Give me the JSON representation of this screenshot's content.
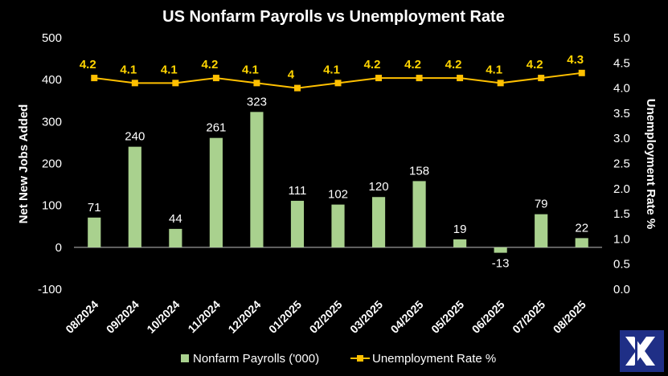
{
  "chart_data": {
    "type": "bar+line",
    "title": "US Nonfarm Payrolls vs Unemployment Rate",
    "categories": [
      "08/2024",
      "09/2024",
      "10/2024",
      "11/2024",
      "12/2024",
      "01/2025",
      "02/2025",
      "03/2025",
      "04/2025",
      "05/2025",
      "06/2025",
      "07/2025",
      "08/2025"
    ],
    "series": [
      {
        "name": "Nonfarm Payrolls ('000)",
        "type": "bar",
        "axis": "left",
        "color": "#a9d18e",
        "values": [
          71,
          240,
          44,
          261,
          323,
          111,
          102,
          120,
          158,
          19,
          -13,
          79,
          22
        ],
        "labels": [
          "71",
          "240",
          "44",
          "261",
          "323",
          "111",
          "102",
          "120",
          "158",
          "19",
          "-13",
          "79",
          "22"
        ]
      },
      {
        "name": "Unemployment Rate %",
        "type": "line",
        "axis": "right",
        "color": "#ffc000",
        "label_color": "#ffd400",
        "values": [
          4.2,
          4.1,
          4.1,
          4.2,
          4.1,
          4.0,
          4.1,
          4.2,
          4.2,
          4.2,
          4.1,
          4.2,
          4.3
        ],
        "labels": [
          "4.2",
          "4.1",
          "4.1",
          "4.2",
          "4.1",
          "4",
          "4.1",
          "4.2",
          "4.2",
          "4.2",
          "4.1",
          "4.2",
          "4.3"
        ]
      }
    ],
    "y_left": {
      "label": "Net New Jobs Added",
      "lim": [
        -100,
        500
      ],
      "ticks": [
        "500",
        "400",
        "300",
        "200",
        "100",
        "0",
        "-100"
      ]
    },
    "y_right": {
      "label": "Unemployment Rate %",
      "lim": [
        0,
        5
      ],
      "ticks": [
        "5.0",
        "4.5",
        "4.0",
        "3.5",
        "3.0",
        "2.5",
        "2.0",
        "1.5",
        "1.0",
        "0.5",
        "0.0"
      ]
    },
    "grid": false,
    "legend_position": "bottom",
    "background": "#000000"
  },
  "logo": {
    "name": "x-logo-icon",
    "color": "#1f2f86"
  }
}
